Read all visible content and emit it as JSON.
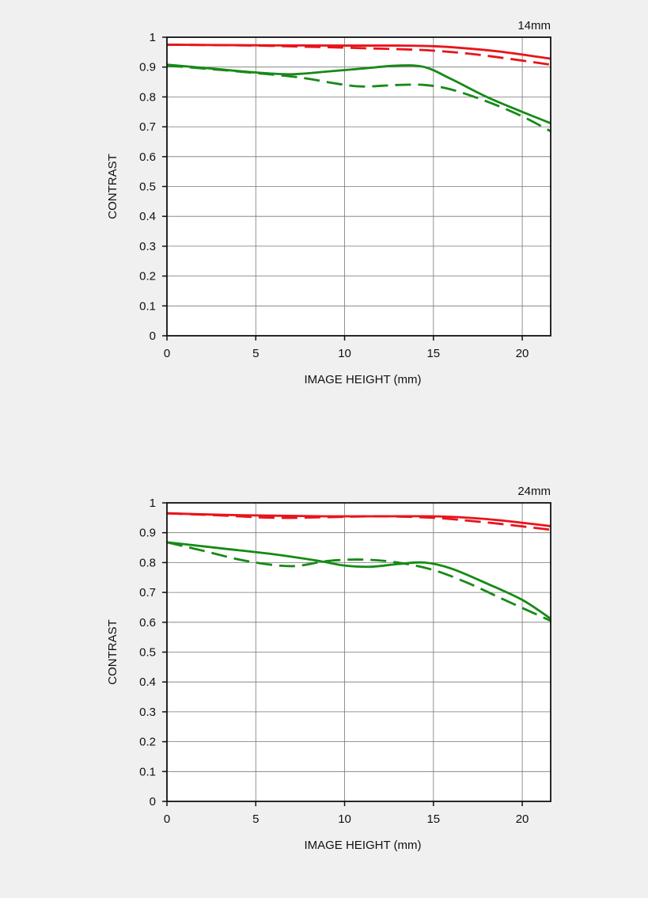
{
  "colors": {
    "background": "#f0f0f0",
    "plot_background": "#ffffff",
    "grid": "#777777",
    "axis": "#111111",
    "sagittal": "#e8141b",
    "meridional": "#168a16"
  },
  "chart_data": [
    {
      "type": "line",
      "corner_label": "14mm",
      "xlabel": "IMAGE HEIGHT (mm)",
      "ylabel": "CONTRAST",
      "xlim": [
        0,
        21.6
      ],
      "ylim": [
        0,
        1
      ],
      "x_ticks": [
        0,
        5,
        10,
        15,
        20
      ],
      "y_ticks": [
        0,
        0.1,
        0.2,
        0.3,
        0.4,
        0.5,
        0.6,
        0.7,
        0.8,
        0.9,
        1
      ],
      "y_tick_labels": [
        "0",
        "0.1",
        "0.2",
        "0.3",
        "0.4",
        "0.5",
        "0.6",
        "0.7",
        "0.8",
        "0.9",
        "1"
      ],
      "grid": true,
      "series": [
        {
          "color": "red",
          "style": "solid",
          "x": [
            0,
            5,
            10,
            13,
            15,
            17,
            19,
            21.6
          ],
          "y": [
            0.975,
            0.973,
            0.972,
            0.972,
            0.97,
            0.962,
            0.95,
            0.928
          ]
        },
        {
          "color": "red",
          "style": "dashed",
          "x": [
            0,
            5,
            8,
            10,
            13,
            15,
            17,
            19,
            21.6
          ],
          "y": [
            0.975,
            0.972,
            0.968,
            0.965,
            0.96,
            0.955,
            0.945,
            0.93,
            0.908
          ]
        },
        {
          "color": "green",
          "style": "solid",
          "x": [
            0,
            2.5,
            5,
            7,
            9,
            11,
            13,
            14.5,
            16,
            18,
            20,
            21.6
          ],
          "y": [
            0.908,
            0.895,
            0.882,
            0.876,
            0.885,
            0.895,
            0.905,
            0.9,
            0.86,
            0.8,
            0.75,
            0.712
          ]
        },
        {
          "color": "green",
          "style": "dashed",
          "x": [
            0,
            2.5,
            5,
            7.5,
            9.5,
            11,
            13,
            14.5,
            16,
            18,
            20,
            21.6
          ],
          "y": [
            0.905,
            0.893,
            0.88,
            0.865,
            0.845,
            0.835,
            0.84,
            0.84,
            0.825,
            0.785,
            0.735,
            0.685
          ]
        }
      ]
    },
    {
      "type": "line",
      "corner_label": "24mm",
      "xlabel": "IMAGE HEIGHT (mm)",
      "ylabel": "CONTRAST",
      "xlim": [
        0,
        21.6
      ],
      "ylim": [
        0,
        1
      ],
      "x_ticks": [
        0,
        5,
        10,
        15,
        20
      ],
      "y_ticks": [
        0,
        0.1,
        0.2,
        0.3,
        0.4,
        0.5,
        0.6,
        0.7,
        0.8,
        0.9,
        1
      ],
      "y_tick_labels": [
        "0",
        "0.1",
        "0.2",
        "0.3",
        "0.4",
        "0.5",
        "0.6",
        "0.7",
        "0.8",
        "0.9",
        "1"
      ],
      "grid": true,
      "series": [
        {
          "color": "red",
          "style": "solid",
          "x": [
            0,
            3,
            6,
            9,
            12,
            15,
            17,
            19,
            21.6
          ],
          "y": [
            0.965,
            0.96,
            0.957,
            0.955,
            0.955,
            0.955,
            0.95,
            0.94,
            0.922
          ]
        },
        {
          "color": "red",
          "style": "dashed",
          "x": [
            0,
            3,
            6,
            9,
            12,
            15,
            17,
            19,
            21.6
          ],
          "y": [
            0.965,
            0.958,
            0.95,
            0.952,
            0.955,
            0.95,
            0.94,
            0.928,
            0.91
          ]
        },
        {
          "color": "green",
          "style": "solid",
          "x": [
            0,
            3,
            6,
            8.5,
            10,
            11.5,
            13,
            14.5,
            16,
            18,
            20,
            21.6
          ],
          "y": [
            0.868,
            0.848,
            0.828,
            0.806,
            0.79,
            0.786,
            0.795,
            0.8,
            0.78,
            0.73,
            0.675,
            0.612
          ]
        },
        {
          "color": "green",
          "style": "dashed",
          "x": [
            0,
            2,
            4.5,
            7,
            9,
            11,
            13,
            15,
            17,
            19,
            21.6
          ],
          "y": [
            0.868,
            0.84,
            0.805,
            0.788,
            0.805,
            0.81,
            0.8,
            0.775,
            0.73,
            0.675,
            0.605
          ]
        }
      ]
    }
  ]
}
